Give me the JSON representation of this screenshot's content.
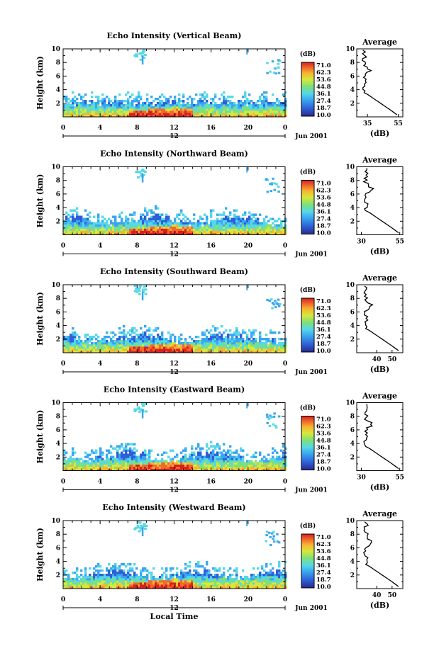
{
  "chart_data": [
    {
      "type": "heatmap",
      "title": "Echo Intensity (Vertical Beam)",
      "ylabel": "Height (km)",
      "xlabel": "",
      "x_ticks": [
        "0",
        "4",
        "8",
        "12",
        "16",
        "20",
        "0"
      ],
      "y_ticks": [
        "2",
        "4",
        "6",
        "8",
        "10"
      ],
      "xlim": [
        0,
        24
      ],
      "ylim": [
        0,
        10
      ],
      "date_label": "12",
      "month_year": "Jun 2001",
      "colorbar": {
        "unit": "(dB)",
        "labels": [
          "71.0",
          "62.3",
          "53.6",
          "44.8",
          "36.1",
          "27.4",
          "18.7",
          "10.0"
        ]
      },
      "profile": {
        "title": "Average",
        "xlabel": "(dB)",
        "x_ticks": [
          "35",
          "55"
        ],
        "xlim": [
          28,
          58
        ],
        "y_ticks": [
          "2",
          "4",
          "6",
          "8",
          "10"
        ]
      }
    },
    {
      "type": "heatmap",
      "title": "Echo Intensity (Northward Beam)",
      "ylabel": "Height (km)",
      "xlabel": "",
      "x_ticks": [
        "0",
        "4",
        "8",
        "12",
        "16",
        "20",
        "0"
      ],
      "y_ticks": [
        "2",
        "4",
        "6",
        "8",
        "10"
      ],
      "xlim": [
        0,
        24
      ],
      "ylim": [
        0,
        10
      ],
      "date_label": "12",
      "month_year": "Jun 2001",
      "colorbar": {
        "unit": "(dB)",
        "labels": [
          "71.0",
          "62.3",
          "53.6",
          "44.8",
          "36.1",
          "27.4",
          "18.7",
          "10.0"
        ]
      },
      "profile": {
        "title": "Average",
        "xlabel": "(dB)",
        "x_ticks": [
          "30",
          "55"
        ],
        "xlim": [
          27,
          57
        ],
        "y_ticks": [
          "2",
          "4",
          "6",
          "8",
          "10"
        ]
      }
    },
    {
      "type": "heatmap",
      "title": "Echo Intensity (Southward Beam)",
      "ylabel": "Height (km)",
      "xlabel": "",
      "x_ticks": [
        "0",
        "4",
        "8",
        "12",
        "16",
        "20",
        "0"
      ],
      "y_ticks": [
        "2",
        "4",
        "6",
        "8",
        "10"
      ],
      "xlim": [
        0,
        24
      ],
      "ylim": [
        0,
        10
      ],
      "date_label": "12",
      "month_year": "Jun 2001",
      "colorbar": {
        "unit": "(dB)",
        "labels": [
          "71.0",
          "62.3",
          "53.6",
          "44.8",
          "36.1",
          "27.4",
          "18.7",
          "10.0"
        ]
      },
      "profile": {
        "title": "Average",
        "xlabel": "(dB)",
        "x_ticks": [
          "40",
          "50"
        ],
        "xlim": [
          27,
          57
        ],
        "y_ticks": [
          "2",
          "4",
          "6",
          "8",
          "10"
        ]
      }
    },
    {
      "type": "heatmap",
      "title": "Echo Intensity (Eastward Beam)",
      "ylabel": "Height (km)",
      "xlabel": "",
      "x_ticks": [
        "0",
        "4",
        "8",
        "12",
        "16",
        "20",
        "0"
      ],
      "y_ticks": [
        "2",
        "4",
        "6",
        "8",
        "10"
      ],
      "xlim": [
        0,
        24
      ],
      "ylim": [
        0,
        10
      ],
      "date_label": "12",
      "month_year": "Jun 2001",
      "colorbar": {
        "unit": "(dB)",
        "labels": [
          "71.0",
          "62.3",
          "53.6",
          "44.8",
          "36.1",
          "27.4",
          "18.7",
          "10.0"
        ]
      },
      "profile": {
        "title": "Average",
        "xlabel": "(dB)",
        "x_ticks": [
          "30",
          "55"
        ],
        "xlim": [
          27,
          57
        ],
        "y_ticks": [
          "2",
          "4",
          "6",
          "8",
          "10"
        ]
      }
    },
    {
      "type": "heatmap",
      "title": "Echo Intensity (Westward Beam)",
      "ylabel": "Height (km)",
      "xlabel": "Local Time",
      "x_ticks": [
        "0",
        "4",
        "8",
        "12",
        "16",
        "20",
        "0"
      ],
      "y_ticks": [
        "2",
        "4",
        "6",
        "8",
        "10"
      ],
      "xlim": [
        0,
        24
      ],
      "ylim": [
        0,
        10
      ],
      "date_label": "12",
      "month_year": "Jun 2001",
      "colorbar": {
        "unit": "(dB)",
        "labels": [
          "71.0",
          "62.3",
          "53.6",
          "44.8",
          "36.1",
          "27.4",
          "18.7",
          "10.0"
        ]
      },
      "profile": {
        "title": "Average",
        "xlabel": "(dB)",
        "x_ticks": [
          "40",
          "50"
        ],
        "xlim": [
          27,
          57
        ],
        "y_ticks": [
          "2",
          "4",
          "6",
          "8",
          "10"
        ]
      }
    }
  ],
  "colors": {
    "scale": [
      "#2a2a8c",
      "#2e5fd6",
      "#3aa6f0",
      "#56d8e6",
      "#7ee07a",
      "#d6e83c",
      "#f7b431",
      "#f06a2a",
      "#d92020"
    ]
  }
}
